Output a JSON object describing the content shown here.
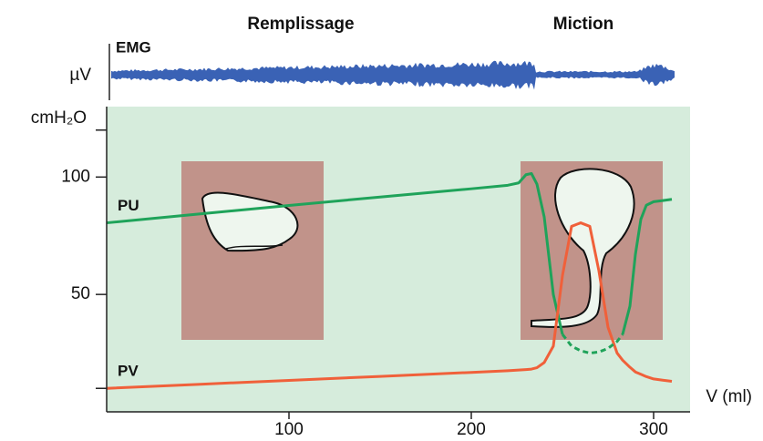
{
  "chart_data": {
    "type": "line",
    "phase_labels": [
      "Remplissage",
      "Miction"
    ],
    "emg_label": "EMG",
    "emg_unit": "µV",
    "ylabel": "cmH₂O",
    "xlabel": "V (ml)",
    "x": [
      0,
      50,
      100,
      150,
      200,
      220,
      226,
      230,
      233,
      236,
      240,
      245,
      250,
      255,
      260,
      265,
      270,
      275,
      280,
      283,
      287,
      290,
      293,
      296,
      300,
      305,
      310
    ],
    "series": [
      {
        "name": "PU",
        "color": "#1fa35a",
        "values": [
          80.5,
          84.2,
          87.9,
          91.5,
          95,
          96.5,
          97.5,
          101,
          101.5,
          97,
          83,
          50,
          33,
          null,
          null,
          null,
          null,
          null,
          null,
          33,
          45,
          67,
          82,
          88,
          89.5,
          90,
          90.5
        ]
      },
      {
        "name": "PV",
        "color": "#f0603a",
        "values": [
          10,
          11.7,
          13.4,
          15.1,
          16.8,
          17.5,
          17.8,
          18,
          18.2,
          18.8,
          21,
          28,
          58,
          79,
          80.5,
          79,
          60,
          36,
          25,
          22,
          19,
          17,
          16,
          15,
          14,
          13.5,
          13
        ]
      },
      {
        "color": "#1fa35a",
        "dashed": true,
        "values": [
          null,
          null,
          null,
          null,
          null,
          null,
          null,
          null,
          null,
          null,
          null,
          null,
          33,
          28,
          26,
          25,
          25.5,
          27,
          30,
          33,
          null,
          null,
          null,
          null,
          null,
          null,
          null
        ]
      }
    ],
    "xlim": [
      0,
      320
    ],
    "ylim": [
      0,
      130
    ],
    "xticks": [
      100,
      200,
      300
    ],
    "yticks": [
      50,
      100
    ],
    "yminorticks": [
      10,
      120
    ],
    "background": "#d6ecdc",
    "emg_color": "#3a62b5"
  }
}
